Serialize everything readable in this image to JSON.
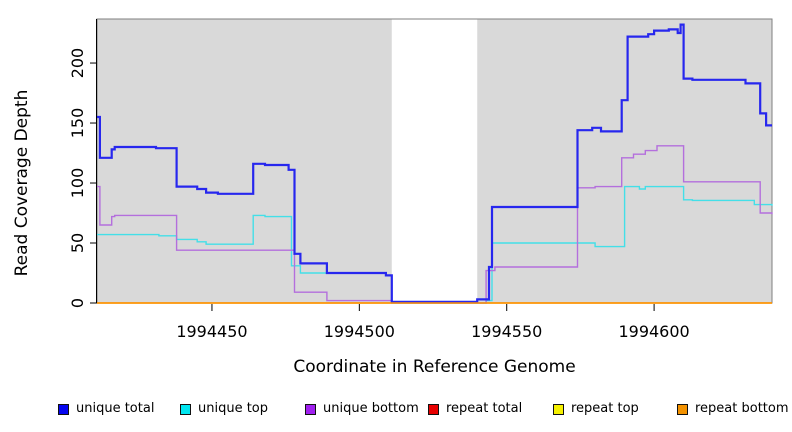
{
  "chart_data": {
    "type": "line",
    "subtype": "step",
    "title": "",
    "xlabel": "Coordinate in Reference Genome",
    "ylabel": "Read Coverage Depth",
    "xlim": [
      1994411,
      1994640
    ],
    "ylim": [
      0,
      236.7
    ],
    "x_ticks": [
      1994450,
      1994500,
      1994550,
      1994600
    ],
    "y_ticks": [
      0,
      50,
      100,
      150,
      200
    ],
    "panel_bg": "#d9d9d9",
    "panel_border": "#7f7f7f",
    "grid": false,
    "legend_position": "bottom",
    "masked_region": {
      "x0": 1994511,
      "x1": 1994540,
      "color": "#ffffff"
    },
    "series": [
      {
        "name": "repeat total",
        "color": "#e00000",
        "line_width": 1.3,
        "points": [
          [
            1994411,
            0
          ],
          [
            1994640,
            0
          ]
        ]
      },
      {
        "name": "repeat top",
        "color": "#f2ea00",
        "line_width": 1.3,
        "points": [
          [
            1994411,
            0
          ],
          [
            1994640,
            0
          ]
        ]
      },
      {
        "name": "unique top",
        "color": "#43dfe8",
        "line_width": 1.4,
        "points": [
          [
            1994411,
            57
          ],
          [
            1994432,
            56
          ],
          [
            1994438,
            53
          ],
          [
            1994445,
            51
          ],
          [
            1994448,
            49
          ],
          [
            1994464,
            73
          ],
          [
            1994468,
            72
          ],
          [
            1994477,
            31
          ],
          [
            1994480,
            25
          ],
          [
            1994509,
            23
          ],
          [
            1994511,
            0
          ],
          [
            1994543,
            2
          ],
          [
            1994545,
            50
          ],
          [
            1994580,
            47
          ],
          [
            1994590,
            97
          ],
          [
            1994595,
            95
          ],
          [
            1994597,
            97
          ],
          [
            1994610,
            86
          ],
          [
            1994613,
            85.5
          ],
          [
            1994634,
            82
          ],
          [
            1994640,
            81
          ]
        ]
      },
      {
        "name": "unique bottom",
        "color": "#b46fdd",
        "line_width": 1.4,
        "points": [
          [
            1994411,
            97
          ],
          [
            1994412,
            65
          ],
          [
            1994416,
            72
          ],
          [
            1994417,
            73
          ],
          [
            1994438,
            44
          ],
          [
            1994478,
            9
          ],
          [
            1994489,
            2
          ],
          [
            1994511,
            0
          ],
          [
            1994543,
            27
          ],
          [
            1994546,
            30
          ],
          [
            1994574,
            96
          ],
          [
            1994580,
            97
          ],
          [
            1994589,
            121
          ],
          [
            1994593,
            124
          ],
          [
            1994597,
            127
          ],
          [
            1994601,
            131
          ],
          [
            1994610,
            101
          ],
          [
            1994635,
            101
          ],
          [
            1994636,
            75
          ],
          [
            1994640,
            74
          ]
        ]
      },
      {
        "name": "unique total",
        "color": "#2727ee",
        "line_width": 2.2,
        "points": [
          [
            1994411,
            155
          ],
          [
            1994412,
            121
          ],
          [
            1994416,
            128
          ],
          [
            1994417,
            130
          ],
          [
            1994431,
            129
          ],
          [
            1994438,
            97
          ],
          [
            1994445,
            95
          ],
          [
            1994448,
            92
          ],
          [
            1994452,
            91
          ],
          [
            1994464,
            116
          ],
          [
            1994468,
            115
          ],
          [
            1994476,
            111
          ],
          [
            1994478,
            41
          ],
          [
            1994480,
            33
          ],
          [
            1994489,
            25
          ],
          [
            1994509,
            23
          ],
          [
            1994511,
            1
          ],
          [
            1994540,
            3
          ],
          [
            1994544,
            30
          ],
          [
            1994545,
            80
          ],
          [
            1994574,
            144
          ],
          [
            1994579,
            146
          ],
          [
            1994582,
            143
          ],
          [
            1994589,
            169
          ],
          [
            1994591,
            222
          ],
          [
            1994598,
            224
          ],
          [
            1994600,
            227
          ],
          [
            1994605,
            228
          ],
          [
            1994608,
            225
          ],
          [
            1994609,
            232
          ],
          [
            1994610,
            187
          ],
          [
            1994613,
            186
          ],
          [
            1994631,
            183
          ],
          [
            1994636,
            158
          ],
          [
            1994638,
            148
          ],
          [
            1994640,
            148
          ]
        ]
      },
      {
        "name": "repeat bottom",
        "color": "#ff9400",
        "line_width": 1.6,
        "points": [
          [
            1994411,
            0
          ],
          [
            1994640,
            0
          ]
        ]
      }
    ],
    "legend": [
      {
        "label": "unique total",
        "color": "#0505f0"
      },
      {
        "label": "unique top",
        "color": "#00e6f0"
      },
      {
        "label": "unique bottom",
        "color": "#a020f0"
      },
      {
        "label": "repeat total",
        "color": "#e80000"
      },
      {
        "label": "repeat top",
        "color": "#f5f000"
      },
      {
        "label": "repeat bottom",
        "color": "#f39200"
      }
    ],
    "legend_x_positions": [
      58,
      180,
      305,
      428,
      553,
      677
    ]
  }
}
